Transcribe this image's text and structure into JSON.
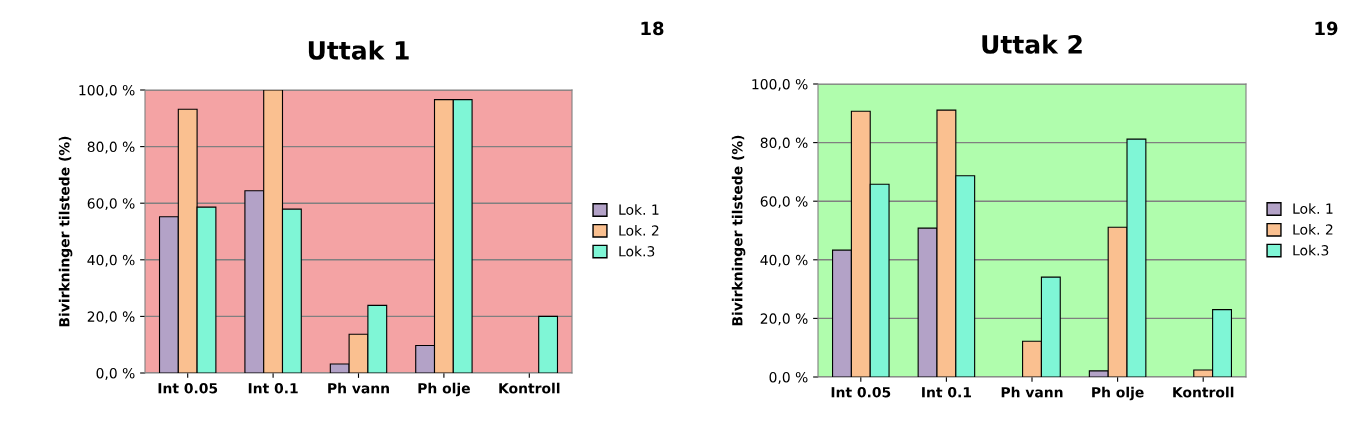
{
  "chart_data": [
    {
      "type": "bar",
      "title": "Uttak 1",
      "ylabel": "Bivirkninger tilstede (%)",
      "annotations": [
        "18"
      ],
      "categories": [
        "Int 0.05",
        "Int 0.1",
        "Ph vann",
        "Ph olje",
        "Kontroll"
      ],
      "series": [
        {
          "name": "Lok. 1",
          "color": "#b3a2c7",
          "values": [
            55.2,
            64.4,
            3.2,
            9.7,
            0
          ]
        },
        {
          "name": "Lok. 2",
          "color": "#fac090",
          "values": [
            93.2,
            100,
            13.7,
            96.6,
            0
          ]
        },
        {
          "name": "Lok.3",
          "color": "#7ff6d6",
          "values": [
            58.6,
            57.9,
            23.9,
            96.6,
            20
          ]
        }
      ],
      "ylim": [
        0,
        100
      ],
      "yticks": [
        {
          "value": 0,
          "label": "0,0 %"
        },
        {
          "value": 20,
          "label": "20,0 %"
        },
        {
          "value": 40,
          "label": "40,0 %"
        },
        {
          "value": 60,
          "label": "60,0 %"
        },
        {
          "value": 80,
          "label": "80,0 %"
        },
        {
          "value": 100,
          "label": "100,0 %"
        }
      ],
      "grid": "y",
      "legend": "right"
    },
    {
      "type": "bar",
      "title": "Uttak 2",
      "ylabel": "Bivirkninger tilstede (%)",
      "annotations": [
        "19"
      ],
      "categories": [
        "Int 0.05",
        "Int 0.1",
        "Ph vann",
        "Ph olje",
        "Kontroll"
      ],
      "series": [
        {
          "name": "Lok. 1",
          "color": "#b3a2c7",
          "values": [
            43.3,
            50.8,
            0,
            2.1,
            0
          ]
        },
        {
          "name": "Lok. 2",
          "color": "#fac090",
          "values": [
            90.7,
            91.1,
            12.2,
            51.1,
            2.4
          ]
        },
        {
          "name": "Lok.3",
          "color": "#7ff6d6",
          "values": [
            65.8,
            68.7,
            34.1,
            81.2,
            23.0
          ]
        }
      ],
      "ylim": [
        0,
        100
      ],
      "yticks": [
        {
          "value": 0,
          "label": "0,0 %"
        },
        {
          "value": 20,
          "label": "20,0 %"
        },
        {
          "value": 40,
          "label": "40,0 %"
        },
        {
          "value": 60,
          "label": "60,0 %"
        },
        {
          "value": 80,
          "label": "80,0 %"
        },
        {
          "value": 100,
          "label": "100,0 %"
        }
      ],
      "grid": "y",
      "legend": "right"
    }
  ]
}
